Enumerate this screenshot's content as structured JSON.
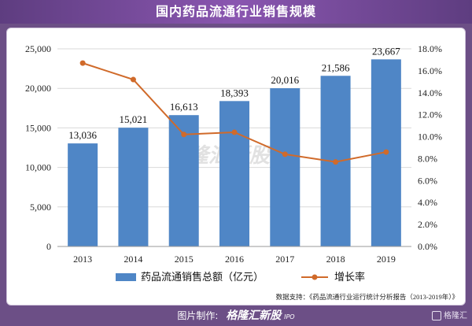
{
  "header": {
    "title": "国内药品流通行业销售规模"
  },
  "source": {
    "text": "数据支持：《药品流通行业运行统计分析报告（2013-2019年）》"
  },
  "footer": {
    "prefix": "图片制作:",
    "brand": "格隆汇新股",
    "brand_sub": "IPO",
    "corner": "格隆汇"
  },
  "watermark": "格隆汇新股",
  "colors": {
    "bar": "#4f86c6",
    "line": "#d06a2a",
    "header": "#6c4f86"
  },
  "chart_data": {
    "type": "bar",
    "categories": [
      "2013",
      "2014",
      "2015",
      "2016",
      "2017",
      "2018",
      "2019"
    ],
    "series": [
      {
        "name": "药品流通销售总额（亿元）",
        "type": "bar",
        "axis": "left",
        "values": [
          13036,
          15021,
          16613,
          18393,
          20016,
          21586,
          23667
        ],
        "labels": [
          "13,036",
          "15,021",
          "16,613",
          "18,393",
          "20,016",
          "21,586",
          "23,667"
        ]
      },
      {
        "name": "增长率",
        "type": "line",
        "axis": "right",
        "values": [
          16.7,
          15.2,
          10.2,
          10.4,
          8.4,
          7.7,
          8.6
        ]
      }
    ],
    "y_left": {
      "min": 0,
      "max": 25000,
      "ticks": [
        "0",
        "5,000",
        "10,000",
        "15,000",
        "20,000",
        "25,000"
      ]
    },
    "y_right": {
      "min": 0,
      "max": 18,
      "ticks": [
        "0.0%",
        "2.0%",
        "4.0%",
        "6.0%",
        "8.0%",
        "10.0%",
        "12.0%",
        "14.0%",
        "16.0%",
        "18.0%"
      ]
    },
    "grid": true,
    "legend": "bottom"
  }
}
